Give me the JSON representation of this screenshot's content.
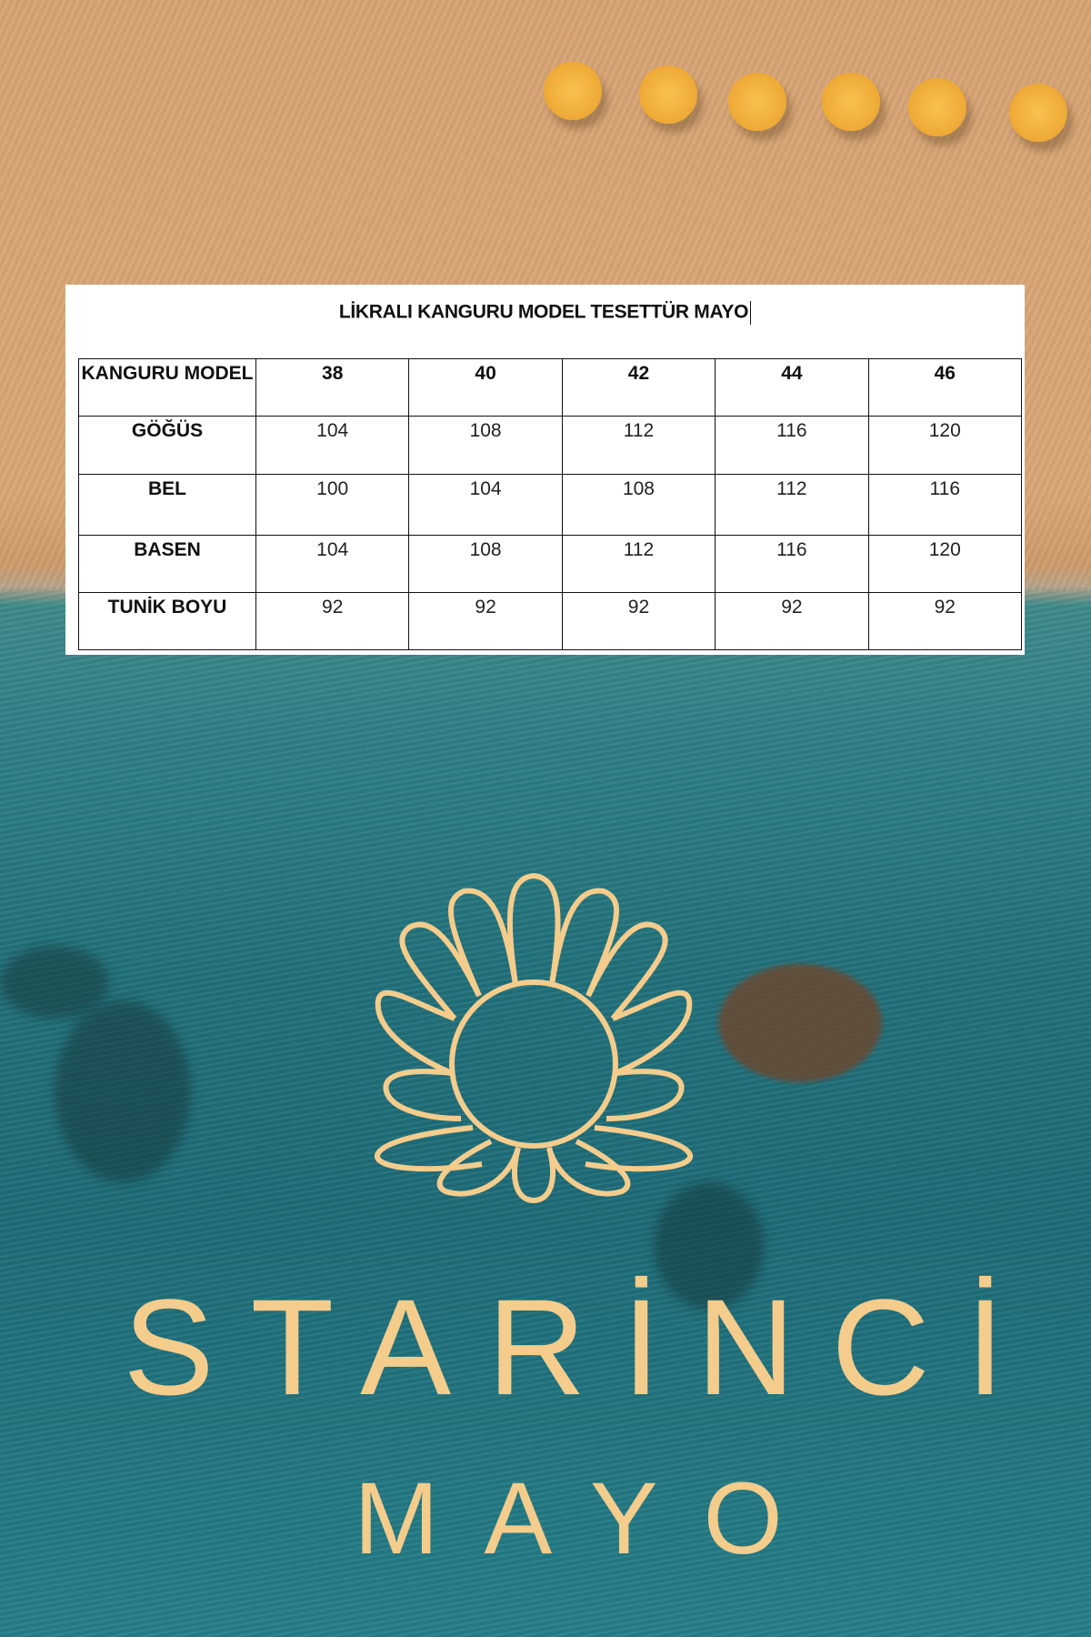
{
  "title": "LİKRALI KANGURU MODEL TESETTÜR MAYO",
  "table": {
    "header": [
      "KANGURU MODEL",
      "38",
      "40",
      "42",
      "44",
      "46"
    ],
    "rows": [
      {
        "label": "GÖĞÜS",
        "values": [
          "104",
          "108",
          "112",
          "116",
          "120"
        ]
      },
      {
        "label": "BEL",
        "values": [
          "100",
          "104",
          "108",
          "112",
          "116"
        ]
      },
      {
        "label": "BASEN",
        "values": [
          "104",
          "108",
          "112",
          "116",
          "120"
        ]
      },
      {
        "label": "TUNİK BOYU",
        "values": [
          "92",
          "92",
          "92",
          "92",
          "92"
        ]
      }
    ]
  },
  "brand": {
    "name": "STARİNCİ",
    "sub": "MAYO",
    "icon": "seashell-pearl-icon",
    "color": "#f4cc8c"
  }
}
